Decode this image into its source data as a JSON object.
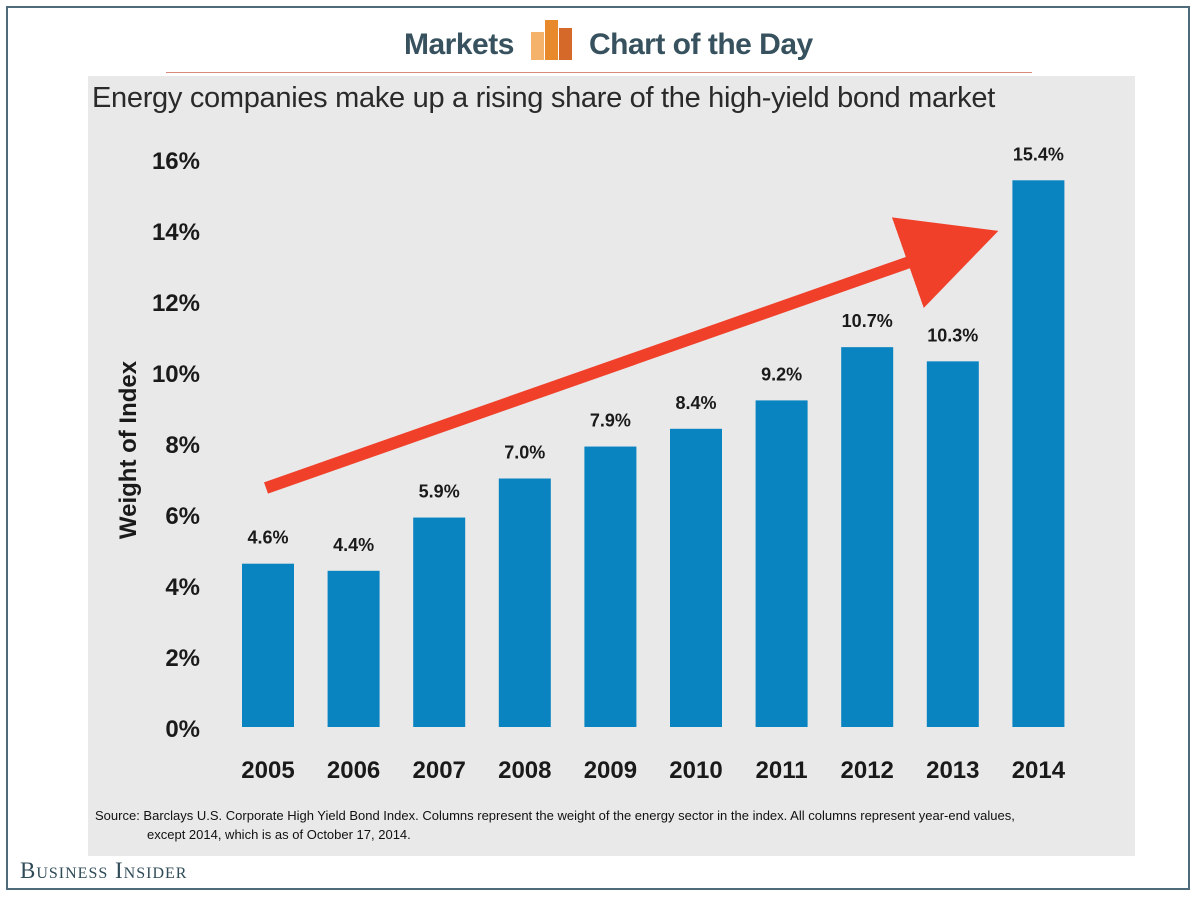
{
  "header": {
    "left_label": "Markets",
    "right_label": "Chart of the Day",
    "logo_icon": "bar-chart-logo-icon"
  },
  "chart_data": {
    "type": "bar",
    "title": "Energy companies make up a rising share of the high-yield bond market",
    "xlabel": "",
    "ylabel": "Weight of Index",
    "categories": [
      "2005",
      "2006",
      "2007",
      "2008",
      "2009",
      "2010",
      "2011",
      "2012",
      "2013",
      "2014"
    ],
    "values": [
      4.6,
      4.4,
      5.9,
      7.0,
      7.9,
      8.4,
      9.2,
      10.7,
      10.3,
      15.4
    ],
    "value_labels": [
      "4.6%",
      "4.4%",
      "5.9%",
      "7.0%",
      "7.9%",
      "8.4%",
      "9.2%",
      "10.7%",
      "10.3%",
      "15.4%"
    ],
    "ylim": [
      0,
      16
    ],
    "yticks": [
      0,
      2,
      4,
      6,
      8,
      10,
      12,
      14,
      16
    ],
    "ytick_labels": [
      "0%",
      "2%",
      "4%",
      "6%",
      "8%",
      "10%",
      "12%",
      "14%",
      "16%"
    ],
    "grid": false,
    "legend": "none",
    "annotation": "trend-arrow",
    "colors": {
      "bar": "#0a84c1",
      "arrow": "#f0402a",
      "background": "#e9e9e9"
    }
  },
  "source": {
    "line1": "Source: Barclays U.S. Corporate High Yield Bond Index. Columns represent the weight of the energy sector in the index. All columns represent year-end values,",
    "line2": "except 2014, which is as of October 17, 2014."
  },
  "brand": "Business Insider",
  "colors": {
    "frame": "#4d6b78",
    "header_text": "#37525e",
    "logo_orange": "#e8892c"
  }
}
